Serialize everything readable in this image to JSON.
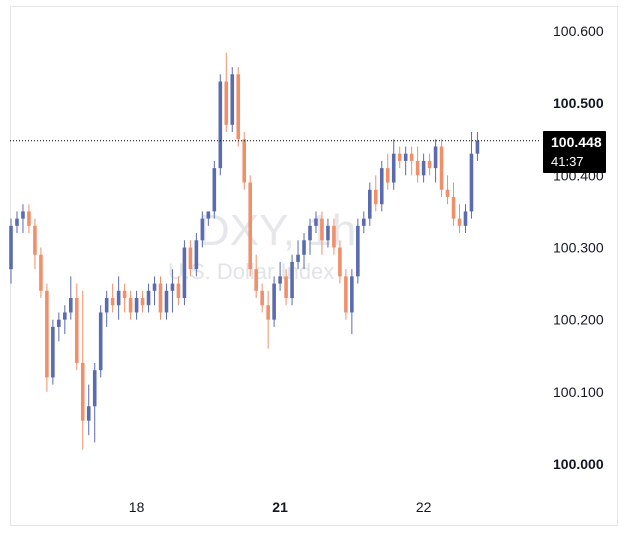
{
  "chart_data": {
    "type": "candlestick",
    "symbol_watermark": "DXY, 1h",
    "subtitle_watermark": "U.S. Dollar Index",
    "ylim": [
      99.98,
      100.63
    ],
    "y_ticks": [
      "100.600",
      "100.500",
      "100.400",
      "100.300",
      "100.200",
      "100.100",
      "100.000"
    ],
    "x_ticks": [
      {
        "label": "18",
        "index": 21,
        "bold": false
      },
      {
        "label": "21",
        "index": 45,
        "bold": true
      },
      {
        "label": "22",
        "index": 69,
        "bold": false
      }
    ],
    "last_price": "100.448",
    "countdown": "41:37",
    "colors": {
      "up": "#5b6bb0",
      "down": "#f0906b",
      "last_line": "#000000"
    },
    "candles": [
      [
        100.27,
        100.34,
        100.25,
        100.33
      ],
      [
        100.33,
        100.35,
        100.32,
        100.34
      ],
      [
        100.34,
        100.36,
        100.32,
        100.35
      ],
      [
        100.35,
        100.36,
        100.32,
        100.33
      ],
      [
        100.33,
        100.34,
        100.27,
        100.29
      ],
      [
        100.29,
        100.3,
        100.23,
        100.24
      ],
      [
        100.24,
        100.25,
        100.1,
        100.12
      ],
      [
        100.12,
        100.2,
        100.11,
        100.19
      ],
      [
        100.19,
        100.21,
        100.17,
        100.2
      ],
      [
        100.2,
        100.22,
        100.18,
        100.21
      ],
      [
        100.21,
        100.26,
        100.2,
        100.23
      ],
      [
        100.23,
        100.25,
        100.13,
        100.14
      ],
      [
        100.14,
        100.24,
        100.02,
        100.06
      ],
      [
        100.06,
        100.11,
        100.04,
        100.08
      ],
      [
        100.08,
        100.14,
        100.03,
        100.13
      ],
      [
        100.13,
        100.22,
        100.12,
        100.21
      ],
      [
        100.21,
        100.24,
        100.19,
        100.23
      ],
      [
        100.23,
        100.25,
        100.21,
        100.22
      ],
      [
        100.22,
        100.26,
        100.2,
        100.24
      ],
      [
        100.24,
        100.25,
        100.21,
        100.23
      ],
      [
        100.23,
        100.24,
        100.2,
        100.21
      ],
      [
        100.21,
        100.24,
        100.2,
        100.23
      ],
      [
        100.23,
        100.24,
        100.21,
        100.22
      ],
      [
        100.22,
        100.25,
        100.21,
        100.24
      ],
      [
        100.24,
        100.26,
        100.22,
        100.25
      ],
      [
        100.25,
        100.26,
        100.2,
        100.21
      ],
      [
        100.21,
        100.25,
        100.2,
        100.24
      ],
      [
        100.24,
        100.27,
        100.21,
        100.25
      ],
      [
        100.25,
        100.26,
        100.22,
        100.23
      ],
      [
        100.23,
        100.31,
        100.22,
        100.3
      ],
      [
        100.3,
        100.31,
        100.26,
        100.27
      ],
      [
        100.27,
        100.32,
        100.26,
        100.31
      ],
      [
        100.31,
        100.35,
        100.3,
        100.34
      ],
      [
        100.34,
        100.35,
        100.33,
        100.35
      ],
      [
        100.35,
        100.42,
        100.34,
        100.41
      ],
      [
        100.41,
        100.54,
        100.4,
        100.53
      ],
      [
        100.53,
        100.57,
        100.46,
        100.47
      ],
      [
        100.47,
        100.55,
        100.46,
        100.54
      ],
      [
        100.54,
        100.55,
        100.44,
        100.45
      ],
      [
        100.45,
        100.46,
        100.38,
        100.39
      ],
      [
        100.39,
        100.4,
        100.26,
        100.27
      ],
      [
        100.27,
        100.29,
        100.23,
        100.24
      ],
      [
        100.24,
        100.25,
        100.21,
        100.22
      ],
      [
        100.22,
        100.24,
        100.16,
        100.2
      ],
      [
        100.2,
        100.26,
        100.19,
        100.25
      ],
      [
        100.25,
        100.28,
        100.24,
        100.26
      ],
      [
        100.26,
        100.27,
        100.22,
        100.23
      ],
      [
        100.23,
        100.29,
        100.22,
        100.28
      ],
      [
        100.28,
        100.31,
        100.27,
        100.29
      ],
      [
        100.29,
        100.32,
        100.27,
        100.31
      ],
      [
        100.31,
        100.34,
        100.29,
        100.33
      ],
      [
        100.33,
        100.35,
        100.32,
        100.34
      ],
      [
        100.34,
        100.35,
        100.29,
        100.31
      ],
      [
        100.31,
        100.34,
        100.3,
        100.33
      ],
      [
        100.33,
        100.34,
        100.29,
        100.3
      ],
      [
        100.3,
        100.31,
        100.25,
        100.26
      ],
      [
        100.26,
        100.27,
        100.2,
        100.21
      ],
      [
        100.21,
        100.27,
        100.18,
        100.26
      ],
      [
        100.26,
        100.34,
        100.25,
        100.33
      ],
      [
        100.33,
        100.35,
        100.32,
        100.34
      ],
      [
        100.34,
        100.39,
        100.33,
        100.38
      ],
      [
        100.38,
        100.4,
        100.35,
        100.36
      ],
      [
        100.36,
        100.42,
        100.35,
        100.41
      ],
      [
        100.41,
        100.43,
        100.38,
        100.39
      ],
      [
        100.39,
        100.45,
        100.38,
        100.43
      ],
      [
        100.43,
        100.44,
        100.41,
        100.42
      ],
      [
        100.42,
        100.44,
        100.4,
        100.43
      ],
      [
        100.43,
        100.44,
        100.4,
        100.42
      ],
      [
        100.42,
        100.44,
        100.39,
        100.4
      ],
      [
        100.4,
        100.43,
        100.39,
        100.42
      ],
      [
        100.42,
        100.43,
        100.4,
        100.41
      ],
      [
        100.41,
        100.45,
        100.39,
        100.44
      ],
      [
        100.44,
        100.45,
        100.37,
        100.38
      ],
      [
        100.38,
        100.4,
        100.36,
        100.37
      ],
      [
        100.37,
        100.39,
        100.33,
        100.34
      ],
      [
        100.34,
        100.36,
        100.32,
        100.33
      ],
      [
        100.33,
        100.36,
        100.32,
        100.35
      ],
      [
        100.35,
        100.46,
        100.34,
        100.43
      ],
      [
        100.43,
        100.46,
        100.42,
        100.448
      ]
    ]
  }
}
